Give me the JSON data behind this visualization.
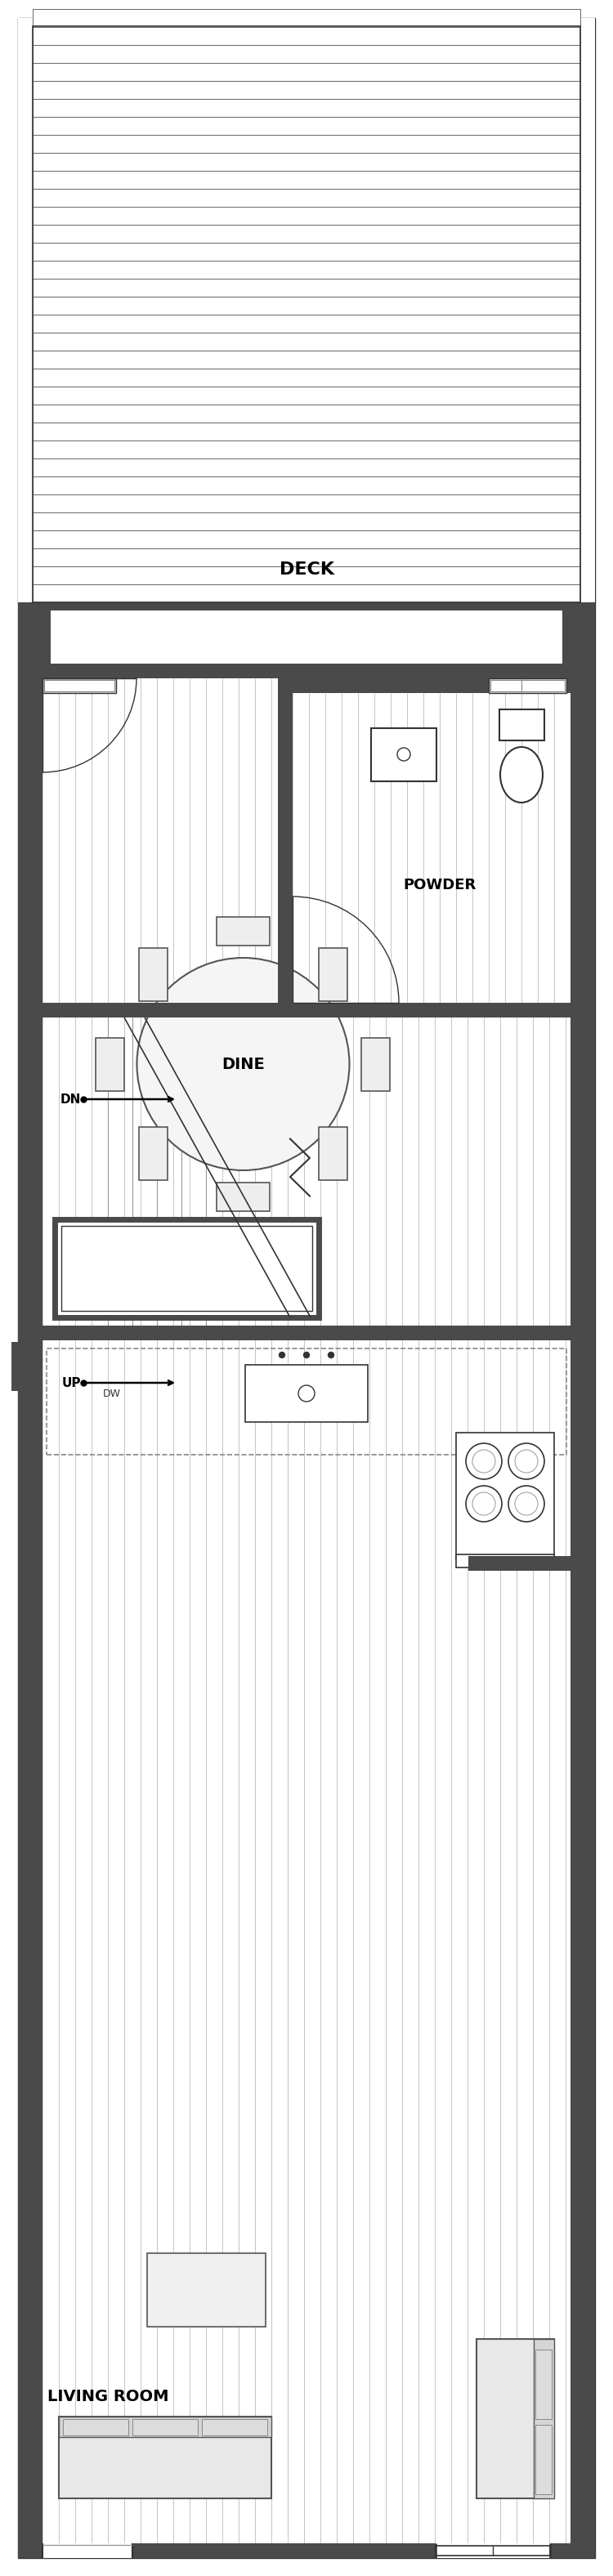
{
  "bg_color": "#ffffff",
  "wall_dark": "#4a4a4a",
  "wall_med": "#777777",
  "line_color": "#333333",
  "figure_width": 7.5,
  "figure_height": 31.52,
  "labels": {
    "deck": "DECK",
    "powder": "POWDER",
    "dine": "DINE",
    "living": "LIVING ROOM",
    "dn": "DN",
    "up": "UP",
    "dw": "DW"
  }
}
